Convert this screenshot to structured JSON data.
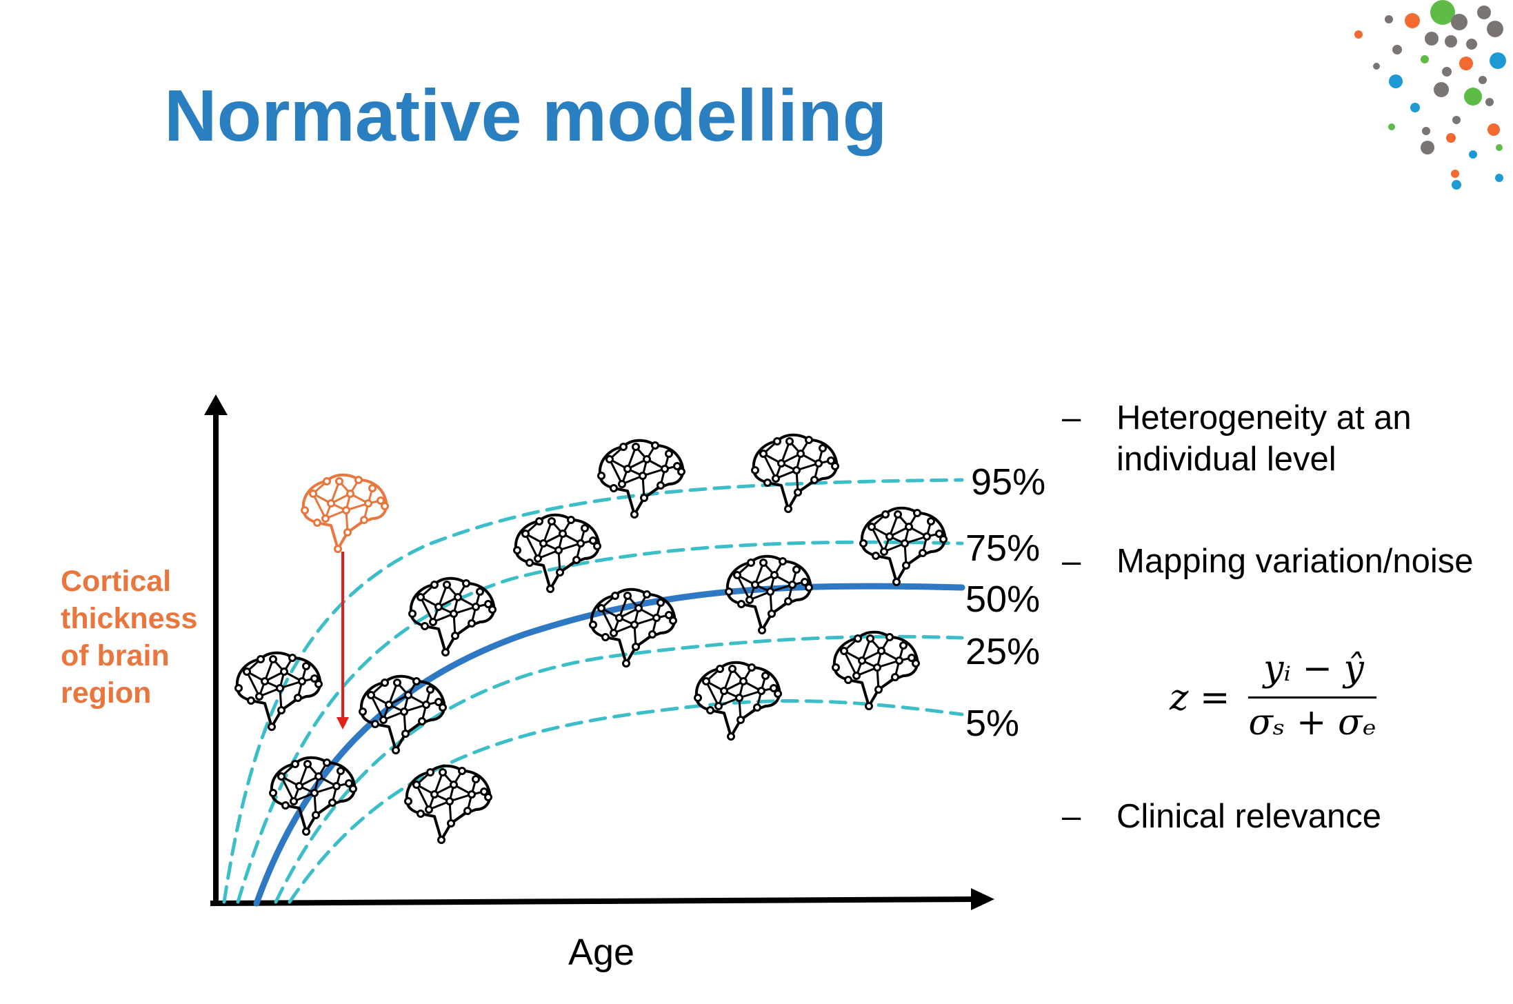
{
  "slide": {
    "title": "Normative modelling"
  },
  "diagram": {
    "y_axis_label": [
      "Cortical",
      "thickness",
      "of brain",
      "region"
    ],
    "x_axis_label": "Age",
    "percentile_labels": [
      "95%",
      "75%",
      "50%",
      "25%",
      "5%"
    ],
    "colors": {
      "title": "#2a7fc1",
      "median_curve": "#2f78c4",
      "percentile_curves": "#3cbec8",
      "highlight_brain": "#e8763d",
      "deviation_arrow": "#e0201b",
      "brain_icons": "#000000"
    },
    "brain_icon_count": 14,
    "highlighted_brain_icon": "orange-brain-icon"
  },
  "bullets": [
    {
      "dash": "–",
      "lines": [
        "Heterogeneity at an",
        "individual level"
      ]
    },
    {
      "dash": "–",
      "lines": [
        "Mapping variation/noise"
      ]
    },
    {
      "dash": "–",
      "lines": [
        "Clinical relevance"
      ]
    }
  ],
  "formula": {
    "lhs": "z =",
    "numerator": "yᵢ − ŷ",
    "denominator": "σₛ + σₑ"
  },
  "decoration": {
    "icon": "dot-cluster-logo-icon",
    "colors": [
      "#7a7572",
      "#f26a2f",
      "#5dbb46",
      "#1c9ad6"
    ]
  }
}
